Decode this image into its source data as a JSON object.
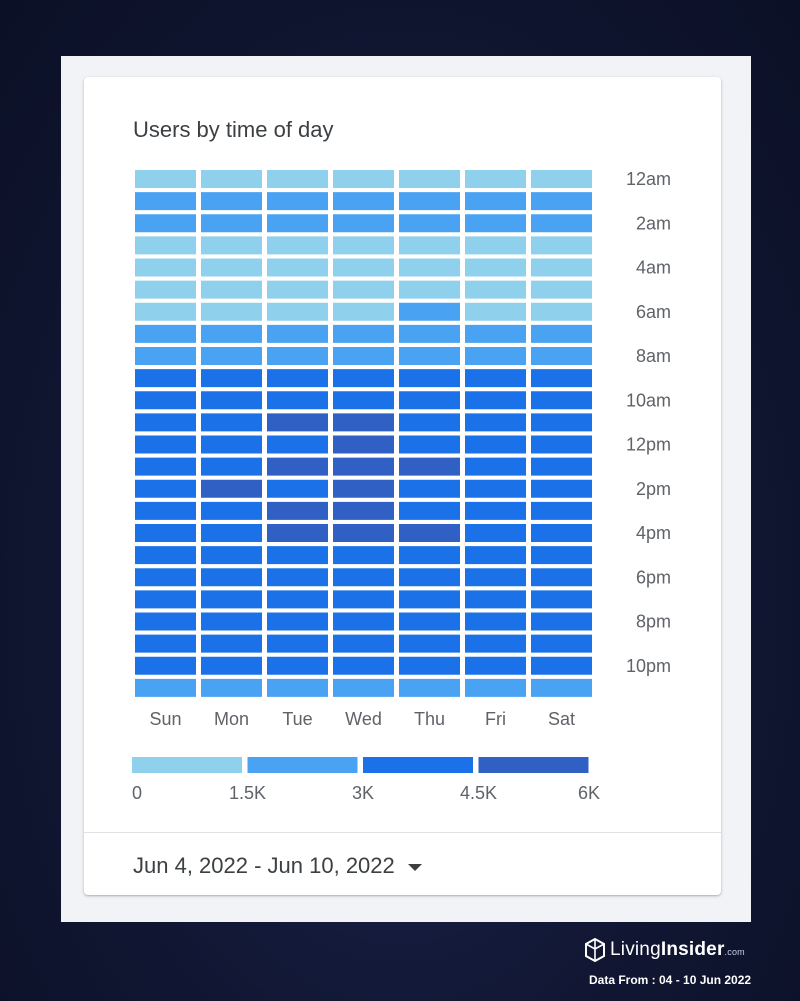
{
  "header": {
    "title": "Users by time of day"
  },
  "chart_data": {
    "type": "heatmap",
    "title": "Users by time of day",
    "days": [
      "Sun",
      "Mon",
      "Tue",
      "Wed",
      "Thu",
      "Fri",
      "Sat"
    ],
    "hours": [
      "12am",
      "1am",
      "2am",
      "3am",
      "4am",
      "5am",
      "6am",
      "7am",
      "8am",
      "9am",
      "10am",
      "11am",
      "12pm",
      "1pm",
      "2pm",
      "3pm",
      "4pm",
      "5pm",
      "6pm",
      "7pm",
      "8pm",
      "9pm",
      "10pm",
      "11pm"
    ],
    "hour_tick_labels": [
      "12am",
      "2am",
      "4am",
      "6am",
      "8am",
      "10am",
      "12pm",
      "2pm",
      "4pm",
      "6pm",
      "8pm",
      "10pm"
    ],
    "legend": {
      "ticks": [
        "0",
        "1.5K",
        "3K",
        "4.5K",
        "6K"
      ],
      "bins": [
        0,
        1500,
        3000,
        4500,
        6000
      ],
      "colors": [
        "#8fd0ec",
        "#4aa3f2",
        "#1b72e8",
        "#3060c4"
      ]
    },
    "values": [
      [
        800,
        800,
        800,
        800,
        800,
        800,
        800
      ],
      [
        2200,
        2200,
        2200,
        2200,
        2200,
        2200,
        2200
      ],
      [
        2200,
        2200,
        2200,
        2200,
        2200,
        2200,
        2200
      ],
      [
        900,
        900,
        900,
        900,
        900,
        900,
        900
      ],
      [
        800,
        800,
        800,
        800,
        800,
        800,
        800
      ],
      [
        800,
        800,
        800,
        800,
        800,
        800,
        800
      ],
      [
        900,
        900,
        900,
        900,
        2200,
        900,
        900
      ],
      [
        2200,
        2200,
        2200,
        2200,
        2200,
        2200,
        2200
      ],
      [
        2300,
        2300,
        2300,
        2300,
        2300,
        2300,
        2300
      ],
      [
        3800,
        3800,
        3800,
        3800,
        3800,
        3800,
        3800
      ],
      [
        3900,
        3900,
        3900,
        3900,
        3900,
        3900,
        3900
      ],
      [
        4000,
        4100,
        4700,
        4700,
        4100,
        4000,
        4000
      ],
      [
        4000,
        4100,
        4300,
        4600,
        4300,
        4000,
        4000
      ],
      [
        4100,
        4200,
        4600,
        4700,
        4600,
        4100,
        4000
      ],
      [
        4000,
        4600,
        4300,
        4700,
        4200,
        4100,
        4000
      ],
      [
        4100,
        4200,
        4600,
        4600,
        4200,
        4100,
        4000
      ],
      [
        4100,
        4200,
        4700,
        4700,
        4600,
        4100,
        4000
      ],
      [
        4000,
        4100,
        4300,
        4300,
        4200,
        4000,
        4000
      ],
      [
        3900,
        4000,
        4100,
        4100,
        4000,
        3900,
        3800
      ],
      [
        3800,
        3900,
        4000,
        4000,
        3900,
        3800,
        3700
      ],
      [
        3700,
        3800,
        3900,
        3900,
        3800,
        3700,
        3600
      ],
      [
        3500,
        3600,
        3700,
        3700,
        3600,
        3500,
        3400
      ],
      [
        3300,
        3400,
        3500,
        3500,
        3400,
        3300,
        3200
      ],
      [
        2400,
        2500,
        2600,
        2600,
        2500,
        2400,
        2300
      ]
    ]
  },
  "date_range": {
    "label": "Jun 4, 2022 - Jun 10, 2022"
  },
  "branding": {
    "name_light": "Living",
    "name_bold": "Insider",
    "suffix": ".com",
    "source": "Data From :  04 - 10 Jun 2022"
  }
}
